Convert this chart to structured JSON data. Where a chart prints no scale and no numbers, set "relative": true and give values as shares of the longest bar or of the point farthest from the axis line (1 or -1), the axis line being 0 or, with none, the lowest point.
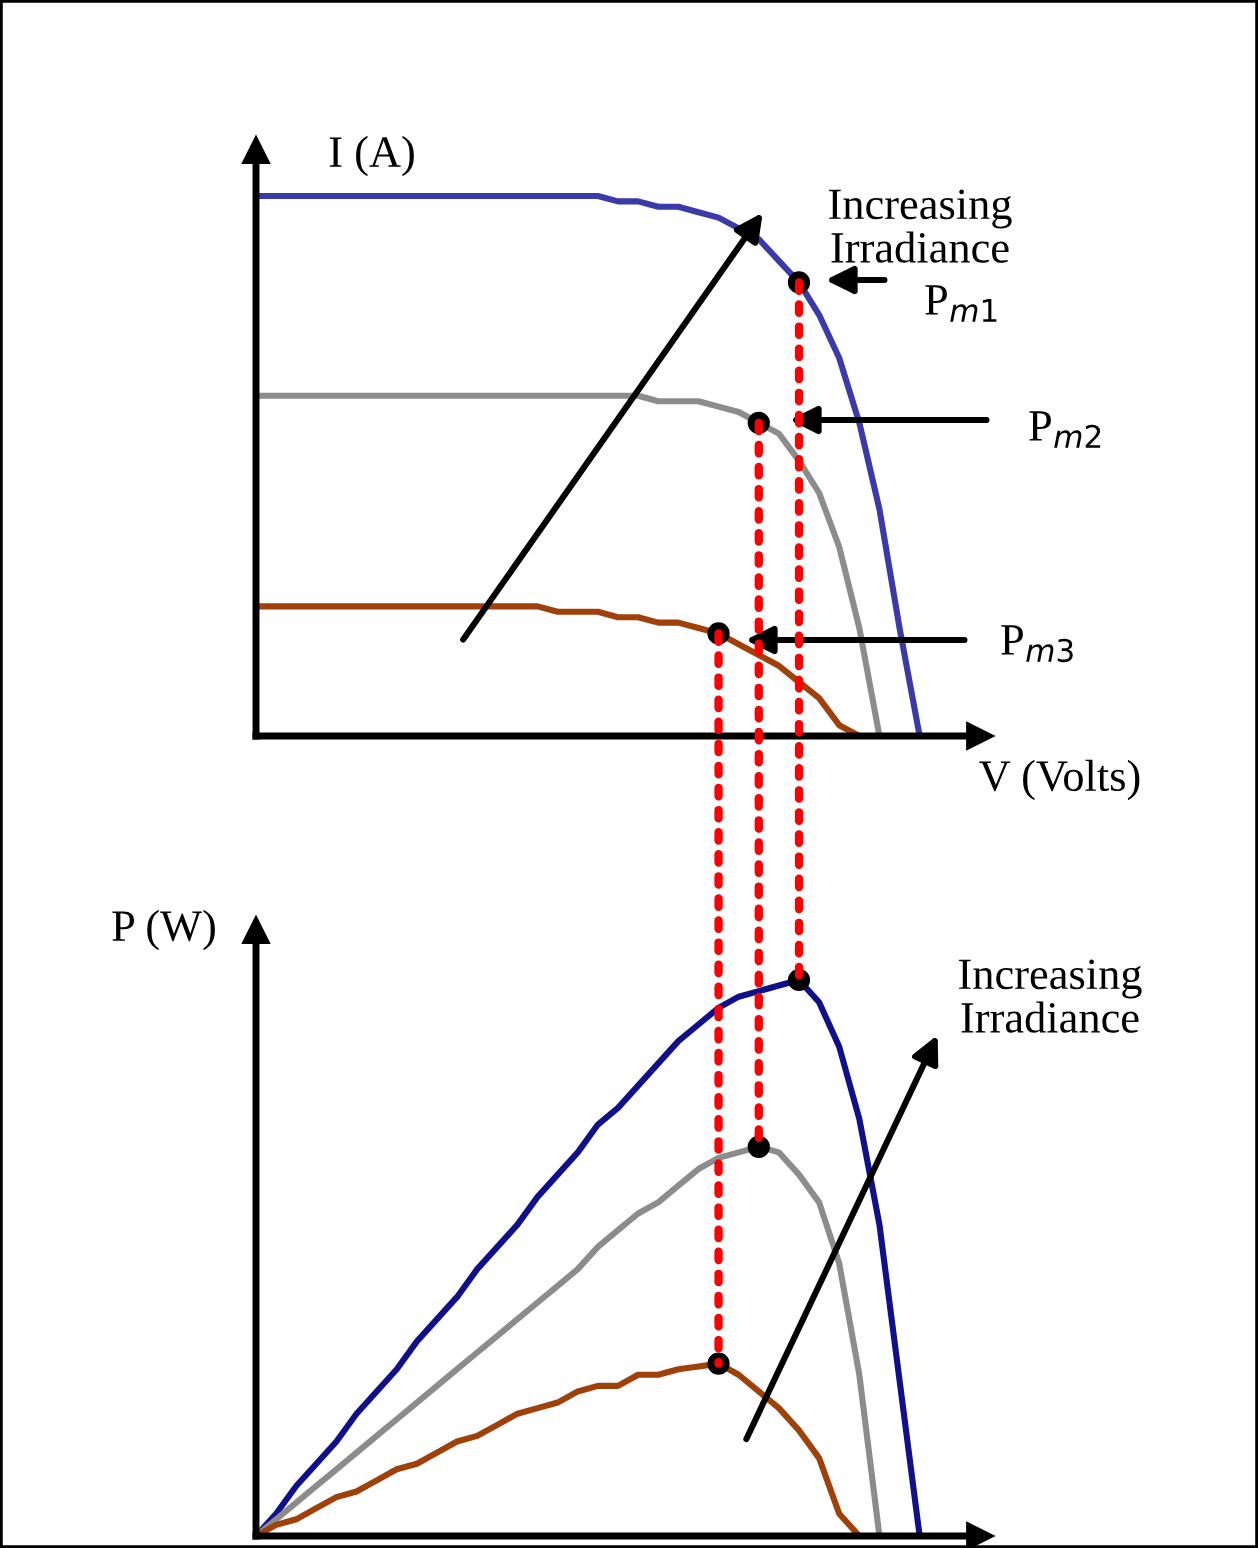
{
  "chart_data": [
    {
      "type": "line",
      "relative": true,
      "ylabel": "I (A)",
      "xlabel": "V (Volts)",
      "categories": [
        null,
        null,
        null,
        null,
        null,
        null,
        null,
        null,
        null,
        null,
        null,
        null,
        null,
        null,
        null,
        null,
        null,
        null,
        null,
        null,
        null,
        null,
        null,
        null,
        null,
        null,
        null,
        null,
        null,
        null,
        null,
        null,
        null,
        null,
        null,
        null,
        null
      ],
      "series": [
        {
          "color": "#3a3aa8",
          "values": [
            1.0,
            1.0,
            1.0,
            1.0,
            1.0,
            1.0,
            1.0,
            1.0,
            1.0,
            1.0,
            1.0,
            1.0,
            1.0,
            1.0,
            1.0,
            1.0,
            1.0,
            1.0,
            0.99,
            0.99,
            0.98,
            0.98,
            0.97,
            0.96,
            0.94,
            0.92,
            0.88,
            0.84,
            0.78,
            0.7,
            0.58,
            0.42,
            0.2,
            0,
            null,
            null,
            null
          ]
        },
        {
          "color": "#8c8c8c",
          "values": [
            0.63,
            0.63,
            0.63,
            0.63,
            0.63,
            0.63,
            0.63,
            0.63,
            0.63,
            0.63,
            0.63,
            0.63,
            0.63,
            0.63,
            0.63,
            0.63,
            0.63,
            0.63,
            0.63,
            0.63,
            0.62,
            0.62,
            0.62,
            0.61,
            0.6,
            0.58,
            0.56,
            0.51,
            0.45,
            0.35,
            0.2,
            0,
            null,
            null,
            null,
            null,
            null
          ]
        },
        {
          "color": "#a0400a",
          "values": [
            0.24,
            0.24,
            0.24,
            0.24,
            0.24,
            0.24,
            0.24,
            0.24,
            0.24,
            0.24,
            0.24,
            0.24,
            0.24,
            0.24,
            0.24,
            0.23,
            0.23,
            0.23,
            0.22,
            0.22,
            0.21,
            0.21,
            0.2,
            0.19,
            0.17,
            0.15,
            0.13,
            0.1,
            0.07,
            0.02,
            0,
            null,
            null,
            null,
            null,
            null,
            null
          ]
        }
      ],
      "annotations": [
        "Increasing\nIrradiance",
        "P$_{m1}$",
        "P$_{m2}$",
        "P$_{m3}$"
      ]
    },
    {
      "type": "line",
      "relative": true,
      "ylabel": "P (W)",
      "categories": [
        null,
        null,
        null,
        null,
        null,
        null,
        null,
        null,
        null,
        null,
        null,
        null,
        null,
        null,
        null,
        null,
        null,
        null,
        null,
        null,
        null,
        null,
        null,
        null,
        null,
        null,
        null,
        null,
        null,
        null,
        null,
        null,
        null,
        null,
        null,
        null,
        null
      ],
      "series": [
        {
          "color": "#10108a",
          "values": [
            0,
            0.04,
            0.09,
            0.13,
            0.17,
            0.22,
            0.26,
            0.3,
            0.35,
            0.39,
            0.43,
            0.48,
            0.52,
            0.56,
            0.61,
            0.65,
            0.69,
            0.74,
            0.77,
            0.81,
            0.85,
            0.89,
            0.92,
            0.95,
            0.97,
            0.98,
            0.99,
            1.0,
            0.96,
            0.88,
            0.75,
            0.56,
            0.28,
            0,
            null,
            null,
            null
          ]
        },
        {
          "color": "#8c8c8c",
          "values": [
            0,
            0.03,
            0.06,
            0.09,
            0.12,
            0.15,
            0.18,
            0.21,
            0.24,
            0.27,
            0.3,
            0.33,
            0.36,
            0.39,
            0.42,
            0.45,
            0.48,
            0.52,
            0.55,
            0.58,
            0.6,
            0.63,
            0.66,
            0.68,
            0.69,
            0.7,
            0.69,
            0.65,
            0.6,
            0.49,
            0.29,
            0,
            null,
            null,
            null,
            null,
            null
          ]
        },
        {
          "color": "#a0400a",
          "values": [
            0,
            0.02,
            0.03,
            0.05,
            0.07,
            0.08,
            0.1,
            0.12,
            0.13,
            0.15,
            0.17,
            0.18,
            0.2,
            0.22,
            0.23,
            0.24,
            0.26,
            0.27,
            0.27,
            0.29,
            0.29,
            0.3,
            0.305,
            0.31,
            0.29,
            0.26,
            0.23,
            0.19,
            0.14,
            0.04,
            0,
            null,
            null,
            null,
            null,
            null,
            null
          ]
        }
      ],
      "annotations": [
        "Increasing\nIrradiance"
      ]
    }
  ]
}
